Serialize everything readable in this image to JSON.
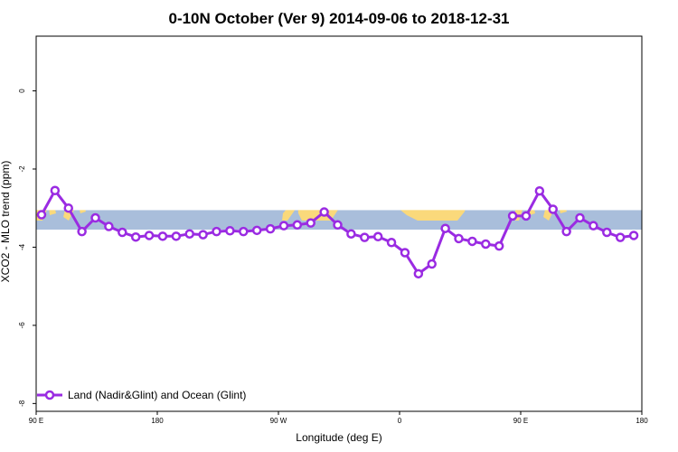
{
  "chart_data": {
    "type": "line",
    "title": "0-10N October (Ver 9)   2014-09-06 to 2018-12-31",
    "xlabel": "Longitude (deg E)",
    "ylabel": "XCO2 - MLO trend (ppm)",
    "xlim": [
      90,
      540
    ],
    "ylim": [
      -8.2,
      1.4
    ],
    "x_tick_values": [
      90,
      180,
      270,
      360,
      450,
      540
    ],
    "x_tick_labels": [
      "90 E",
      "180",
      "90 W",
      "0",
      "90 E",
      "180"
    ],
    "y_tick_values": [
      0,
      -2,
      -4,
      -6,
      -8
    ],
    "y_tick_labels": [
      "0",
      "-2",
      "-4",
      "-6",
      "-8"
    ],
    "land_band": {
      "y_top": -3.05,
      "y_bottom": -3.55,
      "ocean_color": "#A9BEDB",
      "land_color": "#FAD97B"
    },
    "legend_position": "bottom-left",
    "series": [
      {
        "name": "Land (Nadir&Glint) and Ocean (Glint)",
        "color": "#9A2BE2",
        "x": [
          94,
          104,
          114,
          124,
          134,
          144,
          154,
          164,
          174,
          184,
          194,
          204,
          214,
          224,
          234,
          244,
          254,
          264,
          274,
          284,
          294,
          304,
          314,
          324,
          334,
          344,
          354,
          364,
          374,
          384,
          394,
          404,
          414,
          424,
          434,
          444,
          454,
          464,
          474,
          484,
          494,
          504,
          514,
          524,
          534
        ],
        "y": [
          -3.17,
          -2.55,
          -3.0,
          -3.6,
          -3.25,
          -3.47,
          -3.62,
          -3.74,
          -3.7,
          -3.72,
          -3.72,
          -3.66,
          -3.68,
          -3.6,
          -3.58,
          -3.6,
          -3.57,
          -3.53,
          -3.45,
          -3.43,
          -3.38,
          -3.1,
          -3.43,
          -3.66,
          -3.75,
          -3.73,
          -3.88,
          -4.14,
          -4.68,
          -4.43,
          -3.52,
          -3.78,
          -3.85,
          -3.92,
          -3.97,
          -3.2,
          -3.2,
          -2.56,
          -3.03,
          -3.6,
          -3.25,
          -3.45,
          -3.62,
          -3.75,
          -3.7
        ]
      }
    ]
  }
}
